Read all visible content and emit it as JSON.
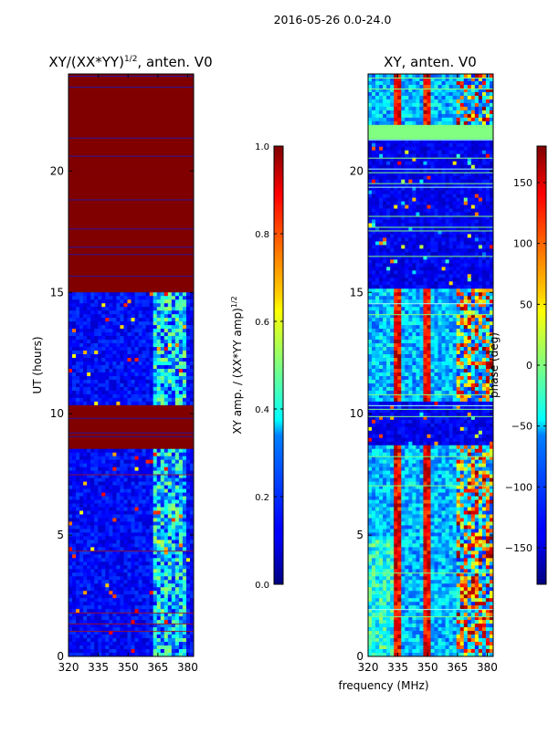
{
  "figure_title": "2016-05-26 0.0-24.0",
  "chart_data": [
    {
      "type": "heatmap",
      "title_main": "XY/(XX*YY)",
      "title_sup": "1/2",
      "title_tail": ", anten. V0",
      "xlabel": "",
      "ylabel": "UT (hours)",
      "xlim": [
        320,
        383
      ],
      "ylim": [
        0,
        24
      ],
      "xticks": [
        320,
        335,
        350,
        365,
        380
      ],
      "yticks": [
        0,
        5,
        10,
        15,
        20
      ],
      "red_blocks_hours": [
        [
          8.6,
          10.4
        ],
        [
          15.0,
          24.0
        ]
      ],
      "bright_band_mhz": [
        363,
        380
      ],
      "colorbar": {
        "label_main": "XY amp. / (XX*YY amp)",
        "label_sup": "1/2",
        "range": [
          0.0,
          1.0
        ],
        "ticks": [
          "0.0",
          "0.2",
          "0.4",
          "0.6",
          "0.8",
          "1.0"
        ]
      }
    },
    {
      "type": "heatmap",
      "title": "XY, anten. V0",
      "xlabel": "frequency (MHz)",
      "ylabel": "",
      "xlim": [
        320,
        383
      ],
      "ylim": [
        0,
        24
      ],
      "xticks": [
        320,
        335,
        350,
        365,
        380
      ],
      "yticks": [
        0,
        5,
        10,
        15,
        20
      ],
      "colorbar": {
        "label": "phase (deg)",
        "range": [
          -180,
          180
        ],
        "ticks": [
          "−150",
          "−100",
          "−50",
          "0",
          "50",
          "100",
          "150"
        ]
      }
    }
  ]
}
